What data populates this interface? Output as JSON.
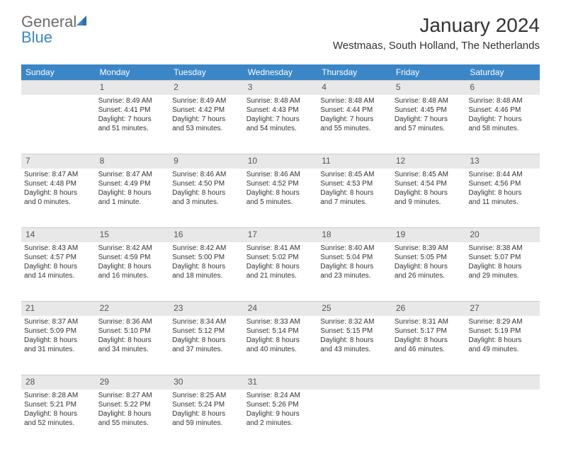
{
  "logo": {
    "text1": "General",
    "text2": "Blue"
  },
  "title": "January 2024",
  "location": "Westmaas, South Holland, The Netherlands",
  "day_headers": [
    "Sunday",
    "Monday",
    "Tuesday",
    "Wednesday",
    "Thursday",
    "Friday",
    "Saturday"
  ],
  "colors": {
    "header_bg": "#3b86c7",
    "header_text": "#ffffff",
    "daynum_bg": "#e8e8e8",
    "text": "#333333",
    "logo_gray": "#6b6b6b",
    "logo_blue": "#3b86c7"
  },
  "weeks": [
    [
      null,
      {
        "n": "1",
        "sr": "Sunrise: 8:49 AM",
        "ss": "Sunset: 4:41 PM",
        "d1": "Daylight: 7 hours",
        "d2": "and 51 minutes."
      },
      {
        "n": "2",
        "sr": "Sunrise: 8:49 AM",
        "ss": "Sunset: 4:42 PM",
        "d1": "Daylight: 7 hours",
        "d2": "and 53 minutes."
      },
      {
        "n": "3",
        "sr": "Sunrise: 8:48 AM",
        "ss": "Sunset: 4:43 PM",
        "d1": "Daylight: 7 hours",
        "d2": "and 54 minutes."
      },
      {
        "n": "4",
        "sr": "Sunrise: 8:48 AM",
        "ss": "Sunset: 4:44 PM",
        "d1": "Daylight: 7 hours",
        "d2": "and 55 minutes."
      },
      {
        "n": "5",
        "sr": "Sunrise: 8:48 AM",
        "ss": "Sunset: 4:45 PM",
        "d1": "Daylight: 7 hours",
        "d2": "and 57 minutes."
      },
      {
        "n": "6",
        "sr": "Sunrise: 8:48 AM",
        "ss": "Sunset: 4:46 PM",
        "d1": "Daylight: 7 hours",
        "d2": "and 58 minutes."
      }
    ],
    [
      {
        "n": "7",
        "sr": "Sunrise: 8:47 AM",
        "ss": "Sunset: 4:48 PM",
        "d1": "Daylight: 8 hours",
        "d2": "and 0 minutes."
      },
      {
        "n": "8",
        "sr": "Sunrise: 8:47 AM",
        "ss": "Sunset: 4:49 PM",
        "d1": "Daylight: 8 hours",
        "d2": "and 1 minute."
      },
      {
        "n": "9",
        "sr": "Sunrise: 8:46 AM",
        "ss": "Sunset: 4:50 PM",
        "d1": "Daylight: 8 hours",
        "d2": "and 3 minutes."
      },
      {
        "n": "10",
        "sr": "Sunrise: 8:46 AM",
        "ss": "Sunset: 4:52 PM",
        "d1": "Daylight: 8 hours",
        "d2": "and 5 minutes."
      },
      {
        "n": "11",
        "sr": "Sunrise: 8:45 AM",
        "ss": "Sunset: 4:53 PM",
        "d1": "Daylight: 8 hours",
        "d2": "and 7 minutes."
      },
      {
        "n": "12",
        "sr": "Sunrise: 8:45 AM",
        "ss": "Sunset: 4:54 PM",
        "d1": "Daylight: 8 hours",
        "d2": "and 9 minutes."
      },
      {
        "n": "13",
        "sr": "Sunrise: 8:44 AM",
        "ss": "Sunset: 4:56 PM",
        "d1": "Daylight: 8 hours",
        "d2": "and 11 minutes."
      }
    ],
    [
      {
        "n": "14",
        "sr": "Sunrise: 8:43 AM",
        "ss": "Sunset: 4:57 PM",
        "d1": "Daylight: 8 hours",
        "d2": "and 14 minutes."
      },
      {
        "n": "15",
        "sr": "Sunrise: 8:42 AM",
        "ss": "Sunset: 4:59 PM",
        "d1": "Daylight: 8 hours",
        "d2": "and 16 minutes."
      },
      {
        "n": "16",
        "sr": "Sunrise: 8:42 AM",
        "ss": "Sunset: 5:00 PM",
        "d1": "Daylight: 8 hours",
        "d2": "and 18 minutes."
      },
      {
        "n": "17",
        "sr": "Sunrise: 8:41 AM",
        "ss": "Sunset: 5:02 PM",
        "d1": "Daylight: 8 hours",
        "d2": "and 21 minutes."
      },
      {
        "n": "18",
        "sr": "Sunrise: 8:40 AM",
        "ss": "Sunset: 5:04 PM",
        "d1": "Daylight: 8 hours",
        "d2": "and 23 minutes."
      },
      {
        "n": "19",
        "sr": "Sunrise: 8:39 AM",
        "ss": "Sunset: 5:05 PM",
        "d1": "Daylight: 8 hours",
        "d2": "and 26 minutes."
      },
      {
        "n": "20",
        "sr": "Sunrise: 8:38 AM",
        "ss": "Sunset: 5:07 PM",
        "d1": "Daylight: 8 hours",
        "d2": "and 29 minutes."
      }
    ],
    [
      {
        "n": "21",
        "sr": "Sunrise: 8:37 AM",
        "ss": "Sunset: 5:09 PM",
        "d1": "Daylight: 8 hours",
        "d2": "and 31 minutes."
      },
      {
        "n": "22",
        "sr": "Sunrise: 8:36 AM",
        "ss": "Sunset: 5:10 PM",
        "d1": "Daylight: 8 hours",
        "d2": "and 34 minutes."
      },
      {
        "n": "23",
        "sr": "Sunrise: 8:34 AM",
        "ss": "Sunset: 5:12 PM",
        "d1": "Daylight: 8 hours",
        "d2": "and 37 minutes."
      },
      {
        "n": "24",
        "sr": "Sunrise: 8:33 AM",
        "ss": "Sunset: 5:14 PM",
        "d1": "Daylight: 8 hours",
        "d2": "and 40 minutes."
      },
      {
        "n": "25",
        "sr": "Sunrise: 8:32 AM",
        "ss": "Sunset: 5:15 PM",
        "d1": "Daylight: 8 hours",
        "d2": "and 43 minutes."
      },
      {
        "n": "26",
        "sr": "Sunrise: 8:31 AM",
        "ss": "Sunset: 5:17 PM",
        "d1": "Daylight: 8 hours",
        "d2": "and 46 minutes."
      },
      {
        "n": "27",
        "sr": "Sunrise: 8:29 AM",
        "ss": "Sunset: 5:19 PM",
        "d1": "Daylight: 8 hours",
        "d2": "and 49 minutes."
      }
    ],
    [
      {
        "n": "28",
        "sr": "Sunrise: 8:28 AM",
        "ss": "Sunset: 5:21 PM",
        "d1": "Daylight: 8 hours",
        "d2": "and 52 minutes."
      },
      {
        "n": "29",
        "sr": "Sunrise: 8:27 AM",
        "ss": "Sunset: 5:22 PM",
        "d1": "Daylight: 8 hours",
        "d2": "and 55 minutes."
      },
      {
        "n": "30",
        "sr": "Sunrise: 8:25 AM",
        "ss": "Sunset: 5:24 PM",
        "d1": "Daylight: 8 hours",
        "d2": "and 59 minutes."
      },
      {
        "n": "31",
        "sr": "Sunrise: 8:24 AM",
        "ss": "Sunset: 5:26 PM",
        "d1": "Daylight: 9 hours",
        "d2": "and 2 minutes."
      },
      null,
      null,
      null
    ]
  ]
}
